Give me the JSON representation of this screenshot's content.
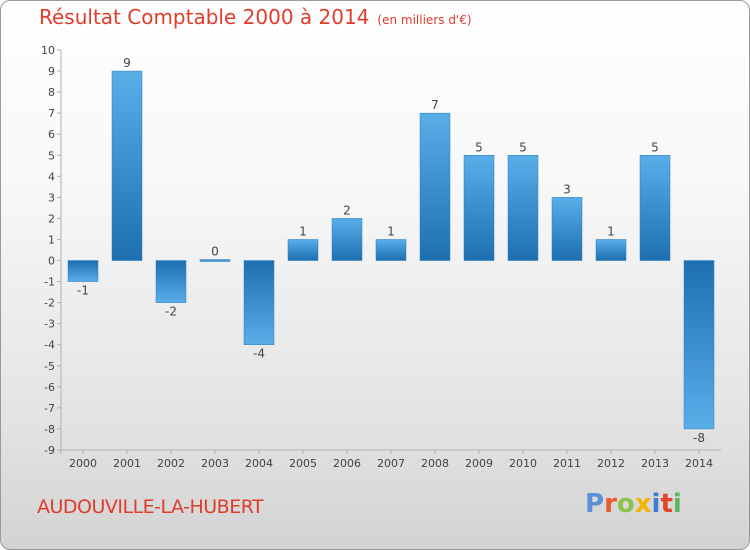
{
  "header": {
    "title": "Résultat Comptable 2000 à 2014",
    "subtitle": "(en milliers d'€)"
  },
  "footer": {
    "town": "AUDOUVILLE-LA-HUBERT",
    "logo_text": "Proxiti",
    "logo_letter_colors": [
      "#5b8fd6",
      "#e85a2c",
      "#8bc34a",
      "#f2b400",
      "#3a7fd5",
      "#e0442b",
      "#5cb85c"
    ]
  },
  "colors": {
    "title": "#e03c2c",
    "bar_light": "#5aaee8",
    "bar_dark": "#1d6fb0"
  },
  "chart_data": {
    "type": "bar",
    "categories": [
      "2000",
      "2001",
      "2002",
      "2003",
      "2004",
      "2005",
      "2006",
      "2007",
      "2008",
      "2009",
      "2010",
      "2011",
      "2012",
      "2013",
      "2014"
    ],
    "values": [
      -1,
      9,
      -2,
      0,
      -4,
      1,
      2,
      1,
      7,
      5,
      5,
      3,
      1,
      5,
      -8
    ],
    "data_labels": [
      "-1",
      "9",
      "-2",
      "0",
      "-4",
      "1",
      "2",
      "1",
      "7",
      "5",
      "5",
      "3",
      "1",
      "5",
      "-8"
    ],
    "y_ticks": [
      "10",
      "9",
      "8",
      "7",
      "6",
      "5",
      "4",
      "3",
      "2",
      "1",
      "0",
      "-1",
      "-2",
      "-3",
      "-4",
      "-5",
      "-6",
      "-7",
      "-8",
      "-9"
    ],
    "ylim": [
      -9,
      10
    ],
    "grid": false,
    "legend": "none"
  }
}
